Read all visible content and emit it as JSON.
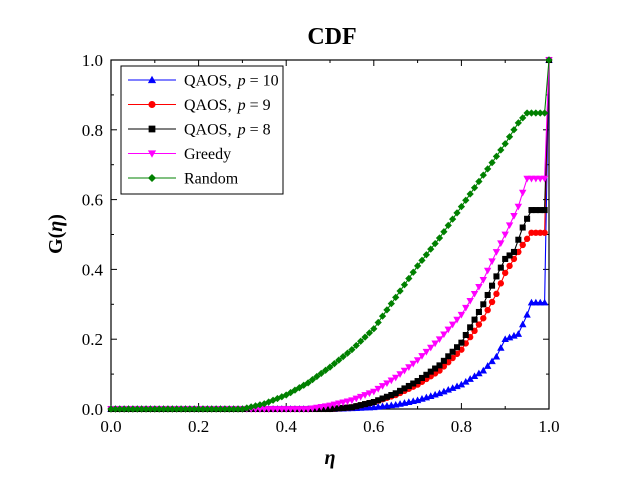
{
  "chart_data": {
    "type": "line",
    "title": "CDF",
    "xlabel_symbol": "η",
    "ylabel_prefix": "G(",
    "ylabel_symbol": "η",
    "ylabel_suffix": ")",
    "xlim": [
      0.0,
      1.0
    ],
    "ylim": [
      0.0,
      1.0
    ],
    "xticks": [
      "0.0",
      "0.2",
      "0.4",
      "0.6",
      "0.8",
      "1.0"
    ],
    "yticks": [
      "0.0",
      "0.2",
      "0.4",
      "0.6",
      "0.8",
      "1.0"
    ],
    "grid": false,
    "legend_position": "top-left",
    "series": [
      {
        "name": "QAOS,",
        "name_param": "p = 10",
        "color": "#0000ff",
        "marker": "triangle-up",
        "points": [
          [
            0,
            0
          ],
          [
            0.5,
            0
          ],
          [
            0.55,
            0.002
          ],
          [
            0.6,
            0.005
          ],
          [
            0.65,
            0.012
          ],
          [
            0.7,
            0.025
          ],
          [
            0.75,
            0.045
          ],
          [
            0.8,
            0.07
          ],
          [
            0.85,
            0.11
          ],
          [
            0.88,
            0.15
          ],
          [
            0.9,
            0.2
          ],
          [
            0.93,
            0.215
          ],
          [
            0.95,
            0.27
          ],
          [
            0.96,
            0.305
          ],
          [
            0.99,
            0.305
          ],
          [
            1.0,
            1.0
          ]
        ]
      },
      {
        "name": "QAOS,",
        "name_param": "p = 9",
        "color": "#ff0000",
        "marker": "circle",
        "points": [
          [
            0,
            0
          ],
          [
            0.5,
            0
          ],
          [
            0.55,
            0.005
          ],
          [
            0.6,
            0.02
          ],
          [
            0.65,
            0.04
          ],
          [
            0.7,
            0.07
          ],
          [
            0.75,
            0.11
          ],
          [
            0.8,
            0.17
          ],
          [
            0.85,
            0.26
          ],
          [
            0.88,
            0.33
          ],
          [
            0.9,
            0.39
          ],
          [
            0.92,
            0.43
          ],
          [
            0.94,
            0.47
          ],
          [
            0.96,
            0.505
          ],
          [
            0.99,
            0.505
          ],
          [
            1.0,
            1.0
          ]
        ]
      },
      {
        "name": "QAOS,",
        "name_param": "p = 8",
        "color": "#000000",
        "marker": "square",
        "points": [
          [
            0,
            0
          ],
          [
            0.5,
            0
          ],
          [
            0.55,
            0.005
          ],
          [
            0.6,
            0.02
          ],
          [
            0.65,
            0.045
          ],
          [
            0.7,
            0.08
          ],
          [
            0.75,
            0.125
          ],
          [
            0.8,
            0.19
          ],
          [
            0.85,
            0.3
          ],
          [
            0.88,
            0.38
          ],
          [
            0.9,
            0.43
          ],
          [
            0.92,
            0.45
          ],
          [
            0.94,
            0.52
          ],
          [
            0.96,
            0.57
          ],
          [
            0.99,
            0.57
          ],
          [
            1.0,
            1.0
          ]
        ]
      },
      {
        "name": "Greedy",
        "color": "#ff00ff",
        "marker": "triangle-down",
        "points": [
          [
            0,
            0
          ],
          [
            0.45,
            0
          ],
          [
            0.5,
            0.01
          ],
          [
            0.55,
            0.025
          ],
          [
            0.6,
            0.05
          ],
          [
            0.65,
            0.09
          ],
          [
            0.7,
            0.14
          ],
          [
            0.75,
            0.2
          ],
          [
            0.8,
            0.27
          ],
          [
            0.85,
            0.37
          ],
          [
            0.88,
            0.45
          ],
          [
            0.9,
            0.5
          ],
          [
            0.93,
            0.58
          ],
          [
            0.95,
            0.66
          ],
          [
            0.99,
            0.66
          ],
          [
            1.0,
            1.0
          ]
        ]
      },
      {
        "name": "Random",
        "color": "#008000",
        "marker": "diamond",
        "points": [
          [
            0,
            0
          ],
          [
            0.3,
            0
          ],
          [
            0.35,
            0.015
          ],
          [
            0.4,
            0.04
          ],
          [
            0.45,
            0.075
          ],
          [
            0.5,
            0.12
          ],
          [
            0.55,
            0.17
          ],
          [
            0.6,
            0.23
          ],
          [
            0.65,
            0.32
          ],
          [
            0.7,
            0.41
          ],
          [
            0.75,
            0.49
          ],
          [
            0.8,
            0.58
          ],
          [
            0.85,
            0.67
          ],
          [
            0.9,
            0.76
          ],
          [
            0.93,
            0.82
          ],
          [
            0.95,
            0.848
          ],
          [
            0.99,
            0.848
          ],
          [
            1.0,
            1.0
          ]
        ]
      }
    ]
  }
}
